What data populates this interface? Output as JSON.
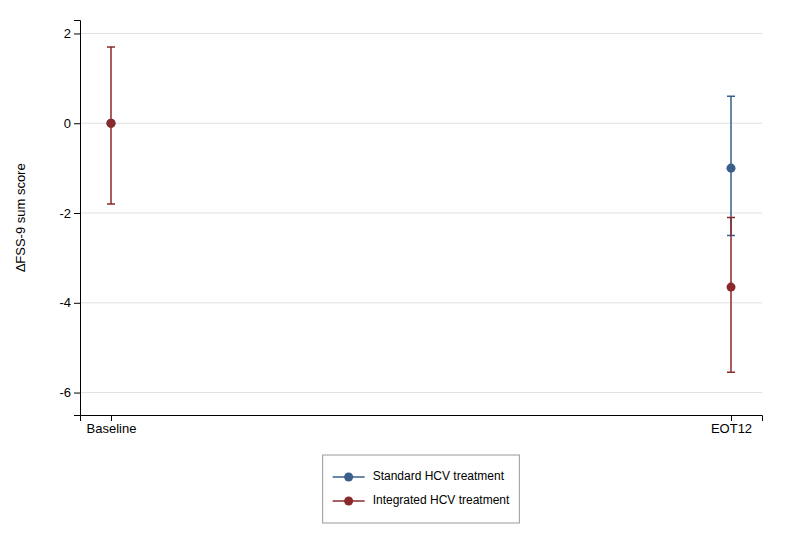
{
  "chart_data": {
    "type": "errorbar",
    "categories": [
      "Baseline",
      "EOT12"
    ],
    "series": [
      {
        "name": "Standard HCV treatment",
        "color": "#3a5f8a",
        "marker": "circle",
        "values": [
          0.0,
          -1.0
        ],
        "ci_lower": [
          0.0,
          -2.5
        ],
        "ci_upper": [
          0.0,
          0.6
        ]
      },
      {
        "name": "Integrated HCV treatment",
        "color": "#8b2a2a",
        "marker": "circle",
        "values": [
          0.0,
          -3.65
        ],
        "ci_lower": [
          -1.8,
          -5.55
        ],
        "ci_upper": [
          1.7,
          -2.1
        ]
      }
    ],
    "ylabel": "∆FSS-9 sum score",
    "ylim": [
      -6.5,
      2.3
    ],
    "yticks": [
      -6,
      -4,
      -2,
      0,
      2
    ],
    "grid": true,
    "legend": "bottom"
  }
}
